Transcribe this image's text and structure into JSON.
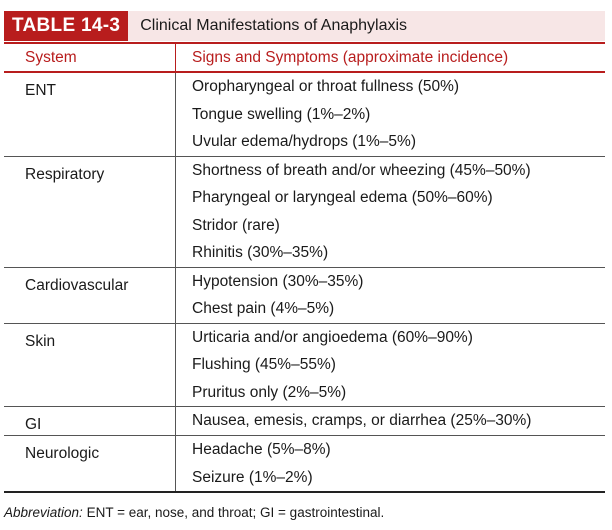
{
  "table": {
    "label": "TABLE 14-3",
    "title": "Clinical Manifestations of Anaphylaxis",
    "headers": {
      "system": "System",
      "signs": "Signs and Symptoms (approximate incidence)"
    },
    "groups": [
      {
        "system": "ENT",
        "items": [
          "Oropharyngeal or throat fullness (50%)",
          "Tongue swelling (1%–2%)",
          "Uvular edema/hydrops (1%–5%)"
        ]
      },
      {
        "system": "Respiratory",
        "items": [
          "Shortness of breath and/or wheezing (45%–50%)",
          "Pharyngeal or laryngeal edema (50%–60%)",
          "Stridor (rare)",
          "Rhinitis (30%–35%)"
        ]
      },
      {
        "system": "Cardiovascular",
        "items": [
          "Hypotension (30%–35%)",
          "Chest pain (4%–5%)"
        ]
      },
      {
        "system": "Skin",
        "items": [
          "Urticaria and/or angioedema (60%–90%)",
          "Flushing (45%–55%)",
          "Pruritus only (2%–5%)"
        ]
      },
      {
        "system": "GI",
        "items": [
          "Nausea, emesis, cramps, or diarrhea (25%–30%)"
        ]
      },
      {
        "system": "Neurologic",
        "items": [
          "Headache (5%–8%)",
          "Seizure (1%–2%)"
        ]
      }
    ]
  },
  "footnote": {
    "label": "Abbreviation:",
    "text": " ENT = ear, nose, and throat; GI = gastrointestinal."
  },
  "colors": {
    "accent": "#b81d1d",
    "title_band": "#f7e6e6"
  }
}
